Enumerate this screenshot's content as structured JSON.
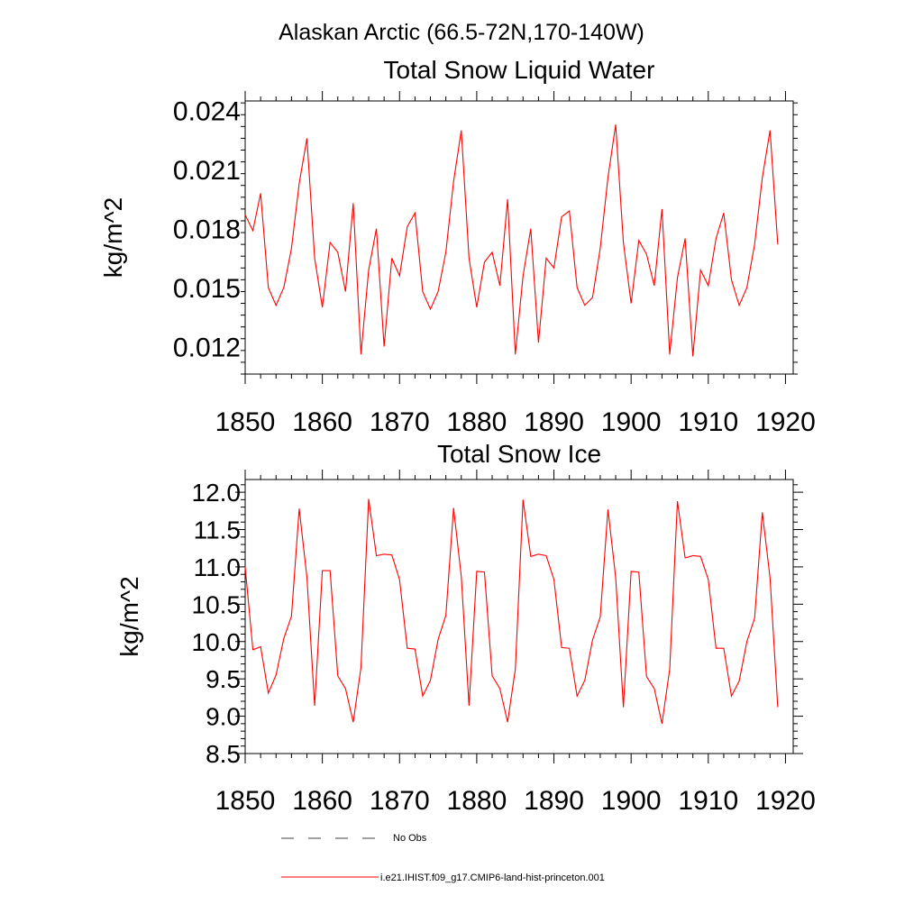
{
  "figure": {
    "title": "Alaskan Arctic (66.5-72N,170-140W)"
  },
  "legend": {
    "entries": [
      {
        "label": "No Obs",
        "style": "dashed",
        "color": "#404040"
      },
      {
        "label": "i.e21.IHIST.f09_g17.CMIP6-land-hist-princeton.001",
        "style": "solid",
        "color": "#ff0000"
      }
    ]
  },
  "chart_data": [
    {
      "type": "line",
      "title": "Total Snow Liquid Water",
      "ylabel": "kg/m^2",
      "xlim": [
        1850,
        1921
      ],
      "ylim": [
        0.0106,
        0.0245
      ],
      "xticks": [
        1850,
        1860,
        1870,
        1880,
        1890,
        1900,
        1910,
        1920
      ],
      "xtick_labels": [
        "1850",
        "1860",
        "1870",
        "1880",
        "1890",
        "1900",
        "1910",
        "1920"
      ],
      "yticks": [
        0.012,
        0.015,
        0.018,
        0.021,
        0.024
      ],
      "ytick_labels": [
        "0.012",
        "0.015",
        "0.018",
        "0.021",
        "0.024"
      ],
      "grid": false,
      "series": [
        {
          "color": "#ff0000",
          "x": [
            1850,
            1851,
            1852,
            1853,
            1854,
            1855,
            1856,
            1857,
            1858,
            1859,
            1860,
            1861,
            1862,
            1863,
            1864,
            1865,
            1866,
            1867,
            1868,
            1869,
            1870,
            1871,
            1872,
            1873,
            1874,
            1875,
            1876,
            1877,
            1878,
            1879,
            1880,
            1881,
            1882,
            1883,
            1884,
            1885,
            1886,
            1887,
            1888,
            1889,
            1890,
            1891,
            1892,
            1893,
            1894,
            1895,
            1896,
            1897,
            1898,
            1899,
            1900,
            1901,
            1902,
            1903,
            1904,
            1905,
            1906,
            1907,
            1908,
            1909,
            1910,
            1911,
            1912,
            1913,
            1914,
            1915,
            1916,
            1917,
            1918,
            1919
          ],
          "values": [
            0.0187,
            0.0179,
            0.0198,
            0.015,
            0.0141,
            0.015,
            0.017,
            0.0203,
            0.0226,
            0.0165,
            0.014,
            0.0173,
            0.0168,
            0.0148,
            0.0193,
            0.0116,
            0.0159,
            0.018,
            0.012,
            0.0165,
            0.0156,
            0.0181,
            0.0188,
            0.0148,
            0.0139,
            0.0148,
            0.0168,
            0.0204,
            0.023,
            0.0165,
            0.014,
            0.0163,
            0.0168,
            0.0151,
            0.0195,
            0.0116,
            0.0156,
            0.018,
            0.0122,
            0.0165,
            0.016,
            0.0186,
            0.0189,
            0.015,
            0.0141,
            0.0145,
            0.017,
            0.0206,
            0.0233,
            0.0173,
            0.0142,
            0.0174,
            0.0167,
            0.0151,
            0.019,
            0.0116,
            0.0155,
            0.0175,
            0.0115,
            0.0159,
            0.0151,
            0.0175,
            0.0188,
            0.0154,
            0.0141,
            0.015,
            0.0172,
            0.0206,
            0.023,
            0.0172
          ]
        }
      ]
    },
    {
      "type": "line",
      "title": "Total Snow Ice",
      "ylabel": "kg/m^2",
      "xlim": [
        1850,
        1921
      ],
      "ylim": [
        8.5,
        12.17
      ],
      "xticks": [
        1850,
        1860,
        1870,
        1880,
        1890,
        1900,
        1910,
        1920
      ],
      "xtick_labels": [
        "1850",
        "1860",
        "1870",
        "1880",
        "1890",
        "1900",
        "1910",
        "1920"
      ],
      "yticks": [
        8.5,
        9.0,
        9.5,
        10.0,
        10.5,
        11.0,
        11.5,
        12.0
      ],
      "ytick_labels": [
        "8.5",
        "9.0",
        "9.5",
        "10.0",
        "10.5",
        "11.0",
        "11.5",
        "12.0"
      ],
      "grid": false,
      "series": [
        {
          "color": "#ff0000",
          "x": [
            1850,
            1851,
            1852,
            1853,
            1854,
            1855,
            1856,
            1857,
            1858,
            1859,
            1860,
            1861,
            1862,
            1863,
            1864,
            1865,
            1866,
            1867,
            1868,
            1869,
            1870,
            1871,
            1872,
            1873,
            1874,
            1875,
            1876,
            1877,
            1878,
            1879,
            1880,
            1881,
            1882,
            1883,
            1884,
            1885,
            1886,
            1887,
            1888,
            1889,
            1890,
            1891,
            1892,
            1893,
            1894,
            1895,
            1896,
            1897,
            1898,
            1899,
            1900,
            1901,
            1902,
            1903,
            1904,
            1905,
            1906,
            1907,
            1908,
            1909,
            1910,
            1911,
            1912,
            1913,
            1914,
            1915,
            1916,
            1917,
            1918,
            1919
          ],
          "values": [
            11.0,
            9.89,
            9.93,
            9.31,
            9.55,
            10.04,
            10.34,
            11.78,
            10.86,
            9.14,
            10.95,
            10.95,
            9.54,
            9.37,
            8.92,
            9.65,
            11.91,
            11.15,
            11.17,
            11.16,
            10.83,
            9.91,
            9.9,
            9.27,
            9.48,
            10.03,
            10.35,
            11.79,
            10.87,
            9.14,
            10.94,
            10.93,
            9.54,
            9.37,
            8.92,
            9.63,
            11.9,
            11.14,
            11.17,
            11.15,
            10.83,
            9.92,
            9.91,
            9.27,
            9.48,
            10.02,
            10.33,
            11.77,
            10.86,
            9.12,
            10.94,
            10.93,
            9.53,
            9.37,
            8.9,
            9.63,
            11.88,
            11.12,
            11.15,
            11.14,
            10.83,
            9.91,
            9.91,
            9.27,
            9.47,
            10.0,
            10.31,
            11.73,
            10.85,
            9.12
          ]
        }
      ]
    }
  ]
}
